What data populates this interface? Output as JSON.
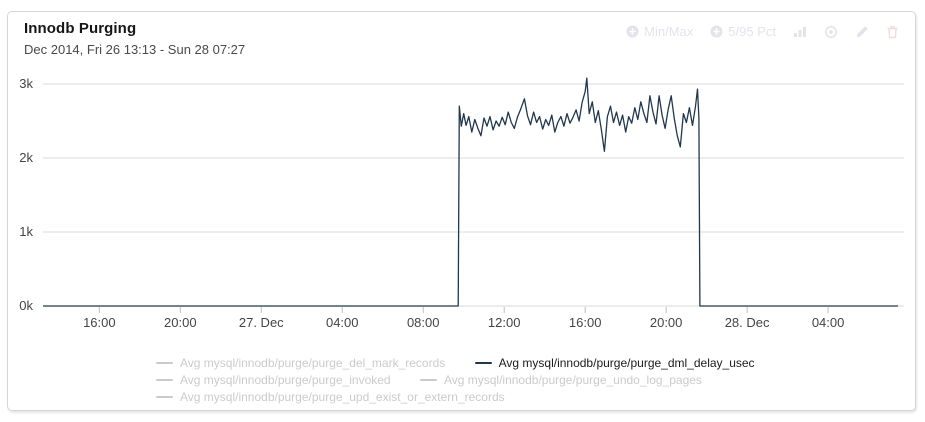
{
  "header": {
    "title": "Innodb Purging",
    "subtitle": "Dec 2014, Fri 26 13:13 - Sun 28 07:27"
  },
  "controls": {
    "min_max_label": "Min/Max",
    "pct_label": "5/95 Pct",
    "icon_names": [
      "plus-circle-icon",
      "plus-circle-icon",
      "bar-chart-icon",
      "circle-dot-icon",
      "pencil-icon",
      "trash-icon"
    ]
  },
  "colors": {
    "accent_series": "#20374e",
    "grid": "#d9d9d9",
    "axis_text": "#444444",
    "legend_inactive": "#cbcbcb",
    "faint_controls": "#e4e3ec",
    "faint_trash": "#f0dddd",
    "card_border": "#d6d6d6"
  },
  "legend": {
    "items": [
      {
        "label": "Avg mysql/innodb/purge/purge_del_mark_records",
        "active": false
      },
      {
        "label": "Avg mysql/innodb/purge/purge_dml_delay_usec",
        "active": true
      },
      {
        "label": "Avg mysql/innodb/purge/purge_invoked",
        "active": false
      },
      {
        "label": "Avg mysql/innodb/purge/purge_undo_log_pages",
        "active": false
      },
      {
        "label": "Avg mysql/innodb/purge/purge_upd_exist_or_extern_records",
        "active": false
      }
    ]
  },
  "chart_data": {
    "type": "line",
    "title": "Innodb Purging",
    "time_range": "Dec 2014, Fri 26 13:13 - Sun 28 07:27",
    "x_unit": "hours since Fri 26 Dec 2014 00:00",
    "xlim": [
      13.217,
      55.75
    ],
    "ylim": [
      0,
      3100
    ],
    "grid": true,
    "legend_position": "bottom",
    "x_ticks": [
      {
        "t": 16,
        "label": "16:00"
      },
      {
        "t": 20,
        "label": "20:00"
      },
      {
        "t": 24,
        "label": "27. Dec"
      },
      {
        "t": 28,
        "label": "04:00"
      },
      {
        "t": 32,
        "label": "08:00"
      },
      {
        "t": 36,
        "label": "12:00"
      },
      {
        "t": 40,
        "label": "16:00"
      },
      {
        "t": 44,
        "label": "20:00"
      },
      {
        "t": 48,
        "label": "28. Dec"
      },
      {
        "t": 52,
        "label": "04:00"
      }
    ],
    "y_ticks": [
      {
        "value": 0,
        "label": "0k"
      },
      {
        "value": 1000,
        "label": "1k"
      },
      {
        "value": 2000,
        "label": "2k"
      },
      {
        "value": 3000,
        "label": "3k"
      }
    ],
    "series": [
      {
        "name": "Avg mysql/innodb/purge/purge_dml_delay_usec",
        "color": "#20374e",
        "points": [
          [
            13.217,
            0
          ],
          [
            33.73,
            0
          ],
          [
            33.78,
            2700
          ],
          [
            33.88,
            2430
          ],
          [
            34.0,
            2600
          ],
          [
            34.12,
            2440
          ],
          [
            34.25,
            2560
          ],
          [
            34.4,
            2350
          ],
          [
            34.55,
            2520
          ],
          [
            34.7,
            2400
          ],
          [
            34.85,
            2300
          ],
          [
            35.0,
            2540
          ],
          [
            35.15,
            2430
          ],
          [
            35.3,
            2560
          ],
          [
            35.45,
            2380
          ],
          [
            35.6,
            2500
          ],
          [
            35.75,
            2430
          ],
          [
            35.9,
            2550
          ],
          [
            36.05,
            2450
          ],
          [
            36.2,
            2620
          ],
          [
            36.35,
            2480
          ],
          [
            36.5,
            2400
          ],
          [
            36.65,
            2550
          ],
          [
            36.8,
            2650
          ],
          [
            37.0,
            2800
          ],
          [
            37.15,
            2570
          ],
          [
            37.3,
            2450
          ],
          [
            37.45,
            2620
          ],
          [
            37.6,
            2480
          ],
          [
            37.75,
            2560
          ],
          [
            37.9,
            2390
          ],
          [
            38.05,
            2520
          ],
          [
            38.2,
            2440
          ],
          [
            38.35,
            2580
          ],
          [
            38.5,
            2350
          ],
          [
            38.65,
            2480
          ],
          [
            38.8,
            2560
          ],
          [
            38.95,
            2430
          ],
          [
            39.1,
            2600
          ],
          [
            39.25,
            2470
          ],
          [
            39.4,
            2550
          ],
          [
            39.55,
            2650
          ],
          [
            39.7,
            2500
          ],
          [
            39.85,
            2750
          ],
          [
            40.0,
            2900
          ],
          [
            40.08,
            3080
          ],
          [
            40.2,
            2600
          ],
          [
            40.35,
            2760
          ],
          [
            40.5,
            2480
          ],
          [
            40.65,
            2640
          ],
          [
            40.8,
            2380
          ],
          [
            40.95,
            2090
          ],
          [
            41.1,
            2560
          ],
          [
            41.25,
            2700
          ],
          [
            41.4,
            2480
          ],
          [
            41.55,
            2620
          ],
          [
            41.7,
            2440
          ],
          [
            41.85,
            2580
          ],
          [
            42.0,
            2350
          ],
          [
            42.15,
            2560
          ],
          [
            42.3,
            2470
          ],
          [
            42.45,
            2680
          ],
          [
            42.6,
            2520
          ],
          [
            42.75,
            2760
          ],
          [
            42.9,
            2600
          ],
          [
            43.05,
            2480
          ],
          [
            43.2,
            2840
          ],
          [
            43.35,
            2620
          ],
          [
            43.5,
            2460
          ],
          [
            43.65,
            2840
          ],
          [
            43.8,
            2580
          ],
          [
            43.95,
            2400
          ],
          [
            44.1,
            2660
          ],
          [
            44.25,
            2840
          ],
          [
            44.4,
            2540
          ],
          [
            44.55,
            2300
          ],
          [
            44.7,
            2150
          ],
          [
            44.85,
            2600
          ],
          [
            45.0,
            2480
          ],
          [
            45.15,
            2680
          ],
          [
            45.3,
            2440
          ],
          [
            45.45,
            2700
          ],
          [
            45.55,
            2930
          ],
          [
            45.62,
            2540
          ],
          [
            45.67,
            0
          ],
          [
            55.45,
            0
          ]
        ]
      }
    ]
  }
}
